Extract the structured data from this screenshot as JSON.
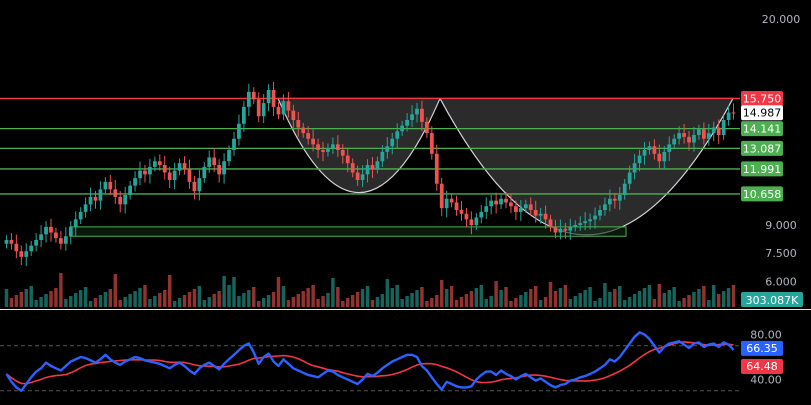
{
  "chart_data": {
    "type": "candlestick",
    "price_axis": {
      "ticks": [
        "20.000",
        "15.750",
        "14.987",
        "14.141",
        "13.087",
        "11.991",
        "10.658",
        "9.000",
        "7.500",
        "6.000"
      ],
      "ylim": [
        5.0,
        21.0
      ]
    },
    "colors": {
      "up": "#26a69a",
      "down": "#ef5350",
      "resistance": "#f23645",
      "support": "#4caf50",
      "rsi": "#2962ff",
      "rsi_ma": "#f23645",
      "cup_fill": "#3a3a3a",
      "cup_stroke": "#d1d4dc",
      "grid": "#555555"
    },
    "levels": [
      {
        "name": "resistance",
        "value": 15.75,
        "label": "15.750",
        "color": "#f23645"
      },
      {
        "name": "support-1",
        "value": 14.141,
        "label": "14.141",
        "color": "#4caf50"
      },
      {
        "name": "support-2",
        "value": 13.087,
        "label": "13.087",
        "color": "#4caf50"
      },
      {
        "name": "support-3",
        "value": 11.991,
        "label": "11.991",
        "color": "#4caf50"
      },
      {
        "name": "support-4",
        "value": 10.658,
        "label": "10.658",
        "color": "#4caf50"
      }
    ],
    "last_price": {
      "value": 14.987,
      "label": "14.987"
    },
    "volume": {
      "last_label": "303.087K"
    },
    "rsi": {
      "ticks": [
        "80.00",
        "40.00"
      ],
      "levels": [
        70,
        30
      ],
      "value_label": "66.35",
      "ma_label": "64.48",
      "ylim": [
        20,
        100
      ]
    },
    "closes": [
      8.2,
      8.0,
      7.6,
      7.3,
      7.6,
      7.9,
      8.2,
      8.5,
      8.9,
      8.6,
      8.3,
      8.0,
      8.4,
      8.9,
      9.3,
      9.7,
      10.1,
      10.5,
      10.3,
      10.9,
      11.3,
      10.9,
      10.5,
      10.1,
      10.6,
      11.1,
      11.5,
      11.9,
      11.7,
      12.1,
      12.4,
      12.2,
      11.8,
      11.4,
      11.9,
      12.3,
      12.0,
      11.3,
      10.8,
      11.5,
      12.1,
      12.6,
      12.2,
      11.7,
      12.4,
      13.0,
      13.6,
      14.4,
      15.3,
      16.1,
      15.7,
      14.8,
      15.5,
      16.2,
      15.3,
      14.9,
      15.6,
      15.1,
      14.6,
      14.2,
      13.9,
      13.6,
      13.3,
      13.0,
      12.9,
      13.1,
      13.3,
      13.0,
      12.7,
      12.3,
      11.8,
      11.4,
      11.7,
      12.2,
      12.0,
      12.4,
      12.9,
      13.2,
      13.6,
      14.0,
      14.3,
      14.6,
      14.9,
      15.2,
      14.5,
      13.9,
      12.8,
      11.2,
      9.9,
      10.4,
      10.2,
      9.8,
      9.6,
      9.3,
      9.0,
      9.4,
      9.7,
      10.0,
      10.3,
      10.1,
      10.4,
      10.2,
      10.0,
      9.7,
      9.9,
      10.1,
      9.8,
      9.5,
      9.6,
      9.3,
      8.9,
      8.6,
      8.8,
      8.7,
      8.9,
      9.0,
      9.1,
      9.2,
      9.3,
      9.5,
      9.8,
      10.1,
      10.4,
      10.3,
      10.6,
      11.2,
      11.8,
      12.3,
      12.7,
      13.0,
      13.2,
      12.8,
      12.4,
      12.9,
      13.3,
      13.6,
      13.9,
      13.7,
      13.4,
      13.8,
      14.1,
      13.6,
      13.9,
      14.2,
      13.8,
      14.6,
      15.0,
      14.99
    ],
    "rsi_values": [
      45,
      38,
      33,
      30,
      36,
      42,
      47,
      50,
      55,
      52,
      50,
      48,
      52,
      56,
      58,
      60,
      59,
      57,
      55,
      58,
      62,
      58,
      55,
      53,
      56,
      58,
      60,
      59,
      57,
      56,
      55,
      54,
      52,
      50,
      53,
      55,
      52,
      48,
      45,
      50,
      53,
      55,
      52,
      49,
      54,
      58,
      62,
      66,
      70,
      72,
      64,
      54,
      60,
      63,
      56,
      52,
      58,
      54,
      50,
      48,
      46,
      44,
      43,
      42,
      45,
      48,
      47,
      44,
      42,
      40,
      38,
      36,
      40,
      45,
      43,
      46,
      50,
      53,
      56,
      58,
      60,
      62,
      62,
      60,
      52,
      48,
      42,
      36,
      31,
      38,
      36,
      34,
      33,
      33,
      34,
      40,
      44,
      47,
      47,
      44,
      48,
      45,
      43,
      40,
      43,
      45,
      42,
      39,
      41,
      38,
      35,
      33,
      35,
      36,
      39,
      40,
      42,
      43,
      45,
      47,
      50,
      53,
      58,
      56,
      60,
      66,
      72,
      78,
      82,
      80,
      76,
      70,
      64,
      69,
      72,
      73,
      74,
      71,
      68,
      72,
      73,
      69,
      71,
      72,
      69,
      73,
      71,
      66.35
    ]
  }
}
